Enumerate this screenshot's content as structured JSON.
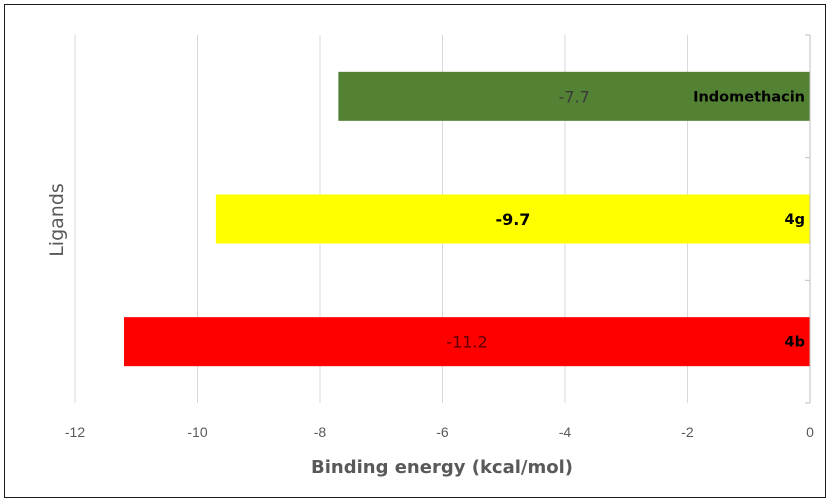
{
  "chart_data": {
    "type": "bar",
    "orientation": "horizontal",
    "title": "",
    "xlabel": "Binding energy (kcal/mol)",
    "ylabel": "Ligands",
    "xlim": [
      -12,
      0
    ],
    "x_ticks": [
      "-12",
      "-10",
      "-8",
      "-6",
      "-4",
      "-2",
      "0"
    ],
    "grid": "vertical",
    "categories": [
      "Indomethacin",
      "4g",
      "4b"
    ],
    "values": [
      -7.7,
      -9.7,
      -11.2
    ],
    "value_labels": [
      "-7.7",
      "-9.7",
      "-11.2"
    ],
    "colors": [
      "#548235",
      "#ffff00",
      "#ff0000"
    ],
    "value_label_colors": [
      "#3a3a3a",
      "#000000",
      "#5a0000"
    ]
  }
}
